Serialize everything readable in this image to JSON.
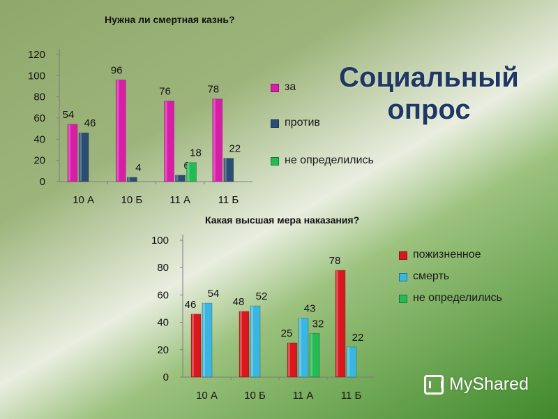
{
  "slide_title": "Социальный опрос",
  "watermark": "MyShared",
  "chart_data": [
    {
      "type": "bar",
      "title": "Нужна ли смертная казнь?",
      "categories": [
        "10 А",
        "10 Б",
        "11 А",
        "11 Б"
      ],
      "ylim": [
        0,
        120
      ],
      "yticks": [
        0,
        20,
        40,
        60,
        80,
        100,
        120
      ],
      "grid": false,
      "legend_position": "right",
      "series": [
        {
          "name": "за",
          "color": "#d81ea8",
          "values": [
            54,
            96,
            76,
            78
          ]
        },
        {
          "name": "против",
          "color": "#2c4d73",
          "values": [
            46,
            4,
            6,
            22
          ]
        },
        {
          "name": "не определились",
          "color": "#22bb55",
          "values": [
            null,
            null,
            18,
            null
          ]
        }
      ]
    },
    {
      "type": "bar",
      "title": "Какая высшая мера наказания?",
      "categories": [
        "10 А",
        "10 Б",
        "11 А",
        "11 Б"
      ],
      "ylim": [
        0,
        100
      ],
      "yticks": [
        0,
        20,
        40,
        60,
        80,
        100
      ],
      "grid": false,
      "legend_position": "right",
      "series": [
        {
          "name": "пожизненное",
          "color": "#d8181f",
          "values": [
            46,
            48,
            25,
            78
          ]
        },
        {
          "name": "смерть",
          "color": "#3ab6e0",
          "values": [
            54,
            52,
            43,
            22
          ]
        },
        {
          "name": "не определились",
          "color": "#22bb55",
          "values": [
            null,
            null,
            32,
            null
          ]
        }
      ]
    }
  ]
}
